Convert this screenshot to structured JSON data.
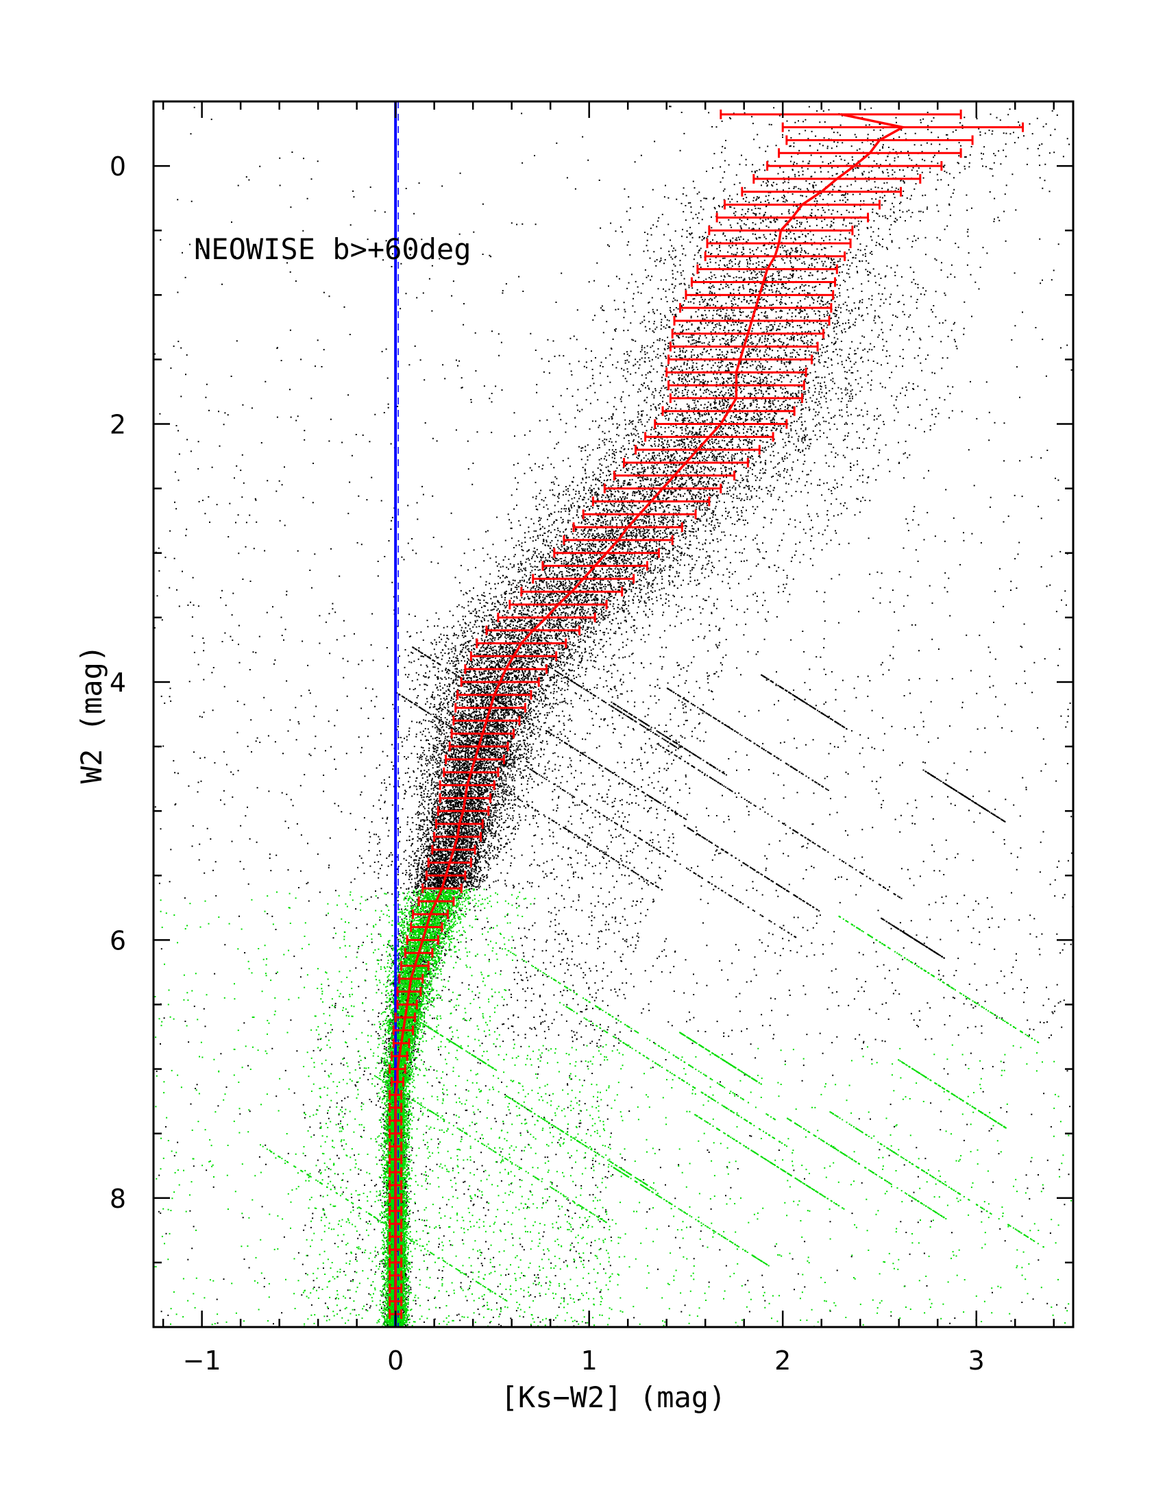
{
  "chart_data": {
    "type": "scatter",
    "title": "",
    "xlabel": "[Ks−W2] (mag)",
    "ylabel": "W2 (mag)",
    "xlim": [
      -1.25,
      3.5
    ],
    "ylim": [
      9.0,
      -0.5
    ],
    "y_inverted": true,
    "x_ticks": [
      -1,
      0,
      1,
      2,
      3
    ],
    "x_tick_labels": [
      "−1",
      "0",
      "1",
      "2",
      "3"
    ],
    "y_ticks": [
      0,
      2,
      4,
      6,
      8
    ],
    "y_tick_labels": [
      "0",
      "2",
      "4",
      "6",
      "8"
    ],
    "annotation": "NEOWISE b>+60deg",
    "colors": {
      "points": "#000000",
      "faint_points": "#00dd00",
      "median": "#ff0000",
      "reference": "#0000ff"
    },
    "reference_line": {
      "x": 0.0
    },
    "median_track": {
      "w2": [
        -0.4,
        -0.3,
        -0.2,
        -0.1,
        0.0,
        0.1,
        0.2,
        0.3,
        0.4,
        0.5,
        0.6,
        0.7,
        0.8,
        0.9,
        1.0,
        1.1,
        1.2,
        1.3,
        1.4,
        1.5,
        1.6,
        1.7,
        1.8,
        1.9,
        2.0,
        2.1,
        2.2,
        2.3,
        2.4,
        2.5,
        2.6,
        2.7,
        2.8,
        2.9,
        3.0,
        3.1,
        3.2,
        3.3,
        3.4,
        3.5,
        3.6,
        3.7,
        3.8,
        3.9,
        4.0,
        4.1,
        4.2,
        4.3,
        4.4,
        4.5,
        4.6,
        4.7,
        4.8,
        4.9,
        5.0,
        5.1,
        5.2,
        5.3,
        5.4,
        5.5,
        5.6,
        5.7,
        5.8,
        5.9,
        6.0,
        6.1,
        6.2,
        6.3,
        6.4,
        6.5,
        6.6,
        6.7,
        6.8,
        6.9,
        7.0,
        7.1,
        7.2,
        7.3,
        7.4,
        7.5,
        7.6,
        7.7,
        7.8,
        7.9,
        8.0,
        8.1,
        8.2,
        8.3,
        8.4,
        8.5,
        8.6,
        8.7,
        8.8,
        8.9
      ],
      "color": [
        2.3,
        2.62,
        2.5,
        2.45,
        2.37,
        2.28,
        2.2,
        2.1,
        2.05,
        1.99,
        1.98,
        1.96,
        1.92,
        1.9,
        1.88,
        1.86,
        1.84,
        1.82,
        1.8,
        1.78,
        1.76,
        1.76,
        1.76,
        1.72,
        1.68,
        1.62,
        1.56,
        1.5,
        1.44,
        1.38,
        1.32,
        1.26,
        1.2,
        1.15,
        1.09,
        1.03,
        0.97,
        0.91,
        0.84,
        0.78,
        0.71,
        0.65,
        0.61,
        0.57,
        0.54,
        0.51,
        0.49,
        0.47,
        0.45,
        0.43,
        0.41,
        0.39,
        0.37,
        0.36,
        0.35,
        0.33,
        0.32,
        0.3,
        0.28,
        0.26,
        0.24,
        0.21,
        0.18,
        0.16,
        0.14,
        0.12,
        0.1,
        0.08,
        0.07,
        0.06,
        0.05,
        0.04,
        0.03,
        0.02,
        0.01,
        0.01,
        0.0,
        0.0,
        0.0,
        0.0,
        0.0,
        0.0,
        0.0,
        0.0,
        0.0,
        0.0,
        0.0,
        0.0,
        0.0,
        0.0,
        0.0,
        0.0,
        0.0,
        0.0
      ],
      "half_width": [
        0.62,
        0.62,
        0.48,
        0.47,
        0.45,
        0.43,
        0.41,
        0.4,
        0.39,
        0.37,
        0.37,
        0.36,
        0.36,
        0.37,
        0.38,
        0.39,
        0.4,
        0.39,
        0.38,
        0.37,
        0.36,
        0.35,
        0.34,
        0.34,
        0.34,
        0.33,
        0.32,
        0.32,
        0.31,
        0.3,
        0.3,
        0.29,
        0.28,
        0.28,
        0.27,
        0.27,
        0.26,
        0.26,
        0.25,
        0.25,
        0.24,
        0.23,
        0.22,
        0.21,
        0.2,
        0.19,
        0.18,
        0.17,
        0.16,
        0.15,
        0.15,
        0.14,
        0.14,
        0.13,
        0.13,
        0.12,
        0.12,
        0.11,
        0.11,
        0.1,
        0.1,
        0.09,
        0.09,
        0.08,
        0.08,
        0.07,
        0.07,
        0.06,
        0.06,
        0.05,
        0.05,
        0.05,
        0.04,
        0.04,
        0.04,
        0.03,
        0.03,
        0.03,
        0.03,
        0.03,
        0.03,
        0.03,
        0.03,
        0.03,
        0.03,
        0.03,
        0.03,
        0.03,
        0.03,
        0.03,
        0.03,
        0.03,
        0.03,
        0.03
      ]
    }
  }
}
